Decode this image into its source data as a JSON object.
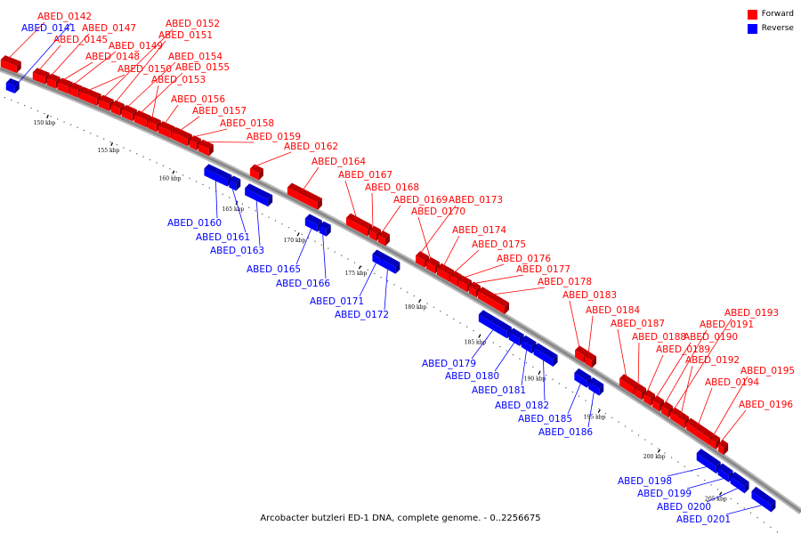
{
  "legend": {
    "forward_label": "Forward",
    "reverse_label": "Reverse",
    "forward_color": "#ff0000",
    "reverse_color": "#0000ff"
  },
  "caption": "Arcobacter butzleri ED-1 DNA, complete genome. - 0..2256675",
  "colors": {
    "backbone": "#888888",
    "forward": "#ff0000",
    "reverse": "#0000ff",
    "tick": "#000000"
  },
  "scale_labels": [
    "150 kbp",
    "155 kbp",
    "160 kbp",
    "165 kbp",
    "170 kbp",
    "175 kbp",
    "180 kbp",
    "185 kbp",
    "190 kbp",
    "195 kbp",
    "200 kbp",
    "205 kbp"
  ],
  "genes": [
    {
      "name": "ABED_0142",
      "strand": "forward"
    },
    {
      "name": "ABED_0141",
      "strand": "reverse"
    },
    {
      "name": "ABED_0145",
      "strand": "forward"
    },
    {
      "name": "ABED_0147",
      "strand": "forward"
    },
    {
      "name": "ABED_0148",
      "strand": "forward"
    },
    {
      "name": "ABED_0149",
      "strand": "forward"
    },
    {
      "name": "ABED_0150",
      "strand": "forward"
    },
    {
      "name": "ABED_0152",
      "strand": "forward"
    },
    {
      "name": "ABED_0151",
      "strand": "forward"
    },
    {
      "name": "ABED_0154",
      "strand": "forward"
    },
    {
      "name": "ABED_0155",
      "strand": "forward"
    },
    {
      "name": "ABED_0153",
      "strand": "forward"
    },
    {
      "name": "ABED_0156",
      "strand": "forward"
    },
    {
      "name": "ABED_0157",
      "strand": "forward"
    },
    {
      "name": "ABED_0158",
      "strand": "forward"
    },
    {
      "name": "ABED_0159",
      "strand": "forward"
    },
    {
      "name": "ABED_0162",
      "strand": "forward"
    },
    {
      "name": "ABED_0164",
      "strand": "forward"
    },
    {
      "name": "ABED_0167",
      "strand": "forward"
    },
    {
      "name": "ABED_0168",
      "strand": "forward"
    },
    {
      "name": "ABED_0169",
      "strand": "forward"
    },
    {
      "name": "ABED_0173",
      "strand": "forward"
    },
    {
      "name": "ABED_0170",
      "strand": "forward"
    },
    {
      "name": "ABED_0174",
      "strand": "forward"
    },
    {
      "name": "ABED_0175",
      "strand": "forward"
    },
    {
      "name": "ABED_0176",
      "strand": "forward"
    },
    {
      "name": "ABED_0177",
      "strand": "forward"
    },
    {
      "name": "ABED_0178",
      "strand": "forward"
    },
    {
      "name": "ABED_0183",
      "strand": "forward"
    },
    {
      "name": "ABED_0184",
      "strand": "forward"
    },
    {
      "name": "ABED_0187",
      "strand": "forward"
    },
    {
      "name": "ABED_0188",
      "strand": "forward"
    },
    {
      "name": "ABED_0189",
      "strand": "forward"
    },
    {
      "name": "ABED_0190",
      "strand": "forward"
    },
    {
      "name": "ABED_0191",
      "strand": "forward"
    },
    {
      "name": "ABED_0193",
      "strand": "forward"
    },
    {
      "name": "ABED_0192",
      "strand": "forward"
    },
    {
      "name": "ABED_0194",
      "strand": "forward"
    },
    {
      "name": "ABED_0195",
      "strand": "forward"
    },
    {
      "name": "ABED_0196",
      "strand": "forward"
    },
    {
      "name": "ABED_0160",
      "strand": "reverse"
    },
    {
      "name": "ABED_0161",
      "strand": "reverse"
    },
    {
      "name": "ABED_0163",
      "strand": "reverse"
    },
    {
      "name": "ABED_0165",
      "strand": "reverse"
    },
    {
      "name": "ABED_0166",
      "strand": "reverse"
    },
    {
      "name": "ABED_0171",
      "strand": "reverse"
    },
    {
      "name": "ABED_0172",
      "strand": "reverse"
    },
    {
      "name": "ABED_0179",
      "strand": "reverse"
    },
    {
      "name": "ABED_0180",
      "strand": "reverse"
    },
    {
      "name": "ABED_0181",
      "strand": "reverse"
    },
    {
      "name": "ABED_0182",
      "strand": "reverse"
    },
    {
      "name": "ABED_0185",
      "strand": "reverse"
    },
    {
      "name": "ABED_0186",
      "strand": "reverse"
    },
    {
      "name": "ABED_0198",
      "strand": "reverse"
    },
    {
      "name": "ABED_0199",
      "strand": "reverse"
    },
    {
      "name": "ABED_0200",
      "strand": "reverse"
    },
    {
      "name": "ABED_0201",
      "strand": "reverse"
    }
  ]
}
